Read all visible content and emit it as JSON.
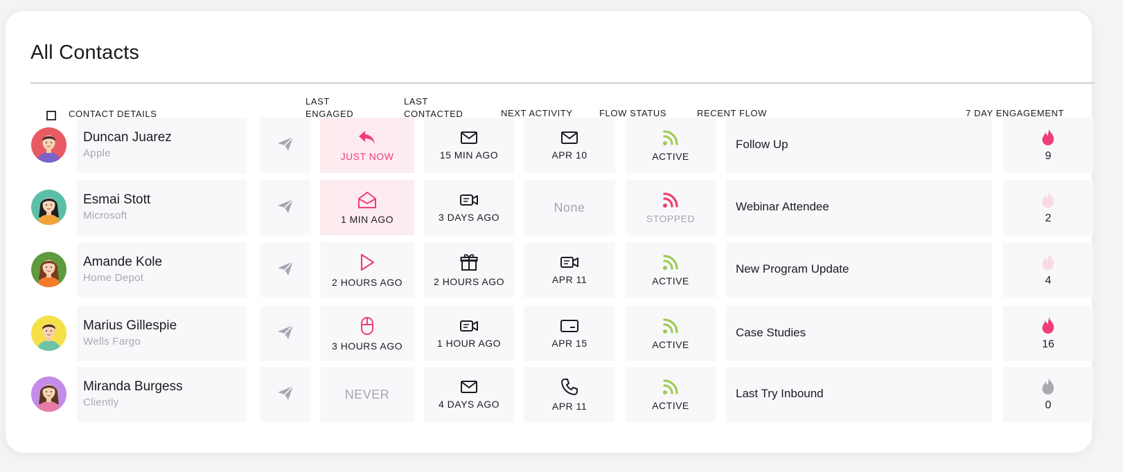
{
  "page": {
    "title": "All Contacts"
  },
  "colors": {
    "accent_pink": "#ee3d78",
    "active_green": "#9dcc52",
    "stopped_red": "#ef3f6a",
    "muted_grey": "#a4a4ad",
    "tile_bg": "#f8f8fb",
    "highlight_bg": "#fdecef"
  },
  "columns": {
    "contact_details": "CONTACT DETAILS",
    "last_engaged": [
      "LAST",
      "ENGAGED"
    ],
    "last_contacted": [
      "LAST",
      "CONTACTED"
    ],
    "next_activity": "NEXT ACTIVITY",
    "flow_status": "FLOW STATUS",
    "recent_flow": "RECENT FLOW",
    "seven_day": "7 DAY ENGAGEMENT"
  },
  "contacts": [
    {
      "name": "Duncan Juarez",
      "company": "Apple",
      "avatar_color": "#e85b62",
      "last_engaged": {
        "icon": "reply-icon",
        "text": "JUST NOW",
        "highlight": true,
        "tone": "pink"
      },
      "last_contacted": {
        "icon": "email-icon",
        "text": "15 MIN AGO"
      },
      "next_activity": {
        "icon": "email-icon",
        "text": "APR 10"
      },
      "flow_status": {
        "text": "ACTIVE",
        "state": "active"
      },
      "recent_flow": "Follow Up",
      "engagement": {
        "count": "9",
        "level": "high"
      }
    },
    {
      "name": "Esmai Stott",
      "company": "Microsoft",
      "avatar_color": "#5bbfa8",
      "last_engaged": {
        "icon": "email-opened-icon",
        "text": "1 MIN AGO",
        "highlight": true,
        "tone": "normal"
      },
      "last_contacted": {
        "icon": "video-icon",
        "text": "3 DAYS AGO"
      },
      "next_activity": {
        "icon": "",
        "text": "None"
      },
      "flow_status": {
        "text": "STOPPED",
        "state": "stopped"
      },
      "recent_flow": "Webinar Attendee",
      "engagement": {
        "count": "2",
        "level": "low"
      }
    },
    {
      "name": "Amande Kole",
      "company": "Home Depot",
      "avatar_color": "#5e9a3e",
      "last_engaged": {
        "icon": "play-icon",
        "text": "2 HOURS AGO",
        "highlight": false,
        "tone": "normal"
      },
      "last_contacted": {
        "icon": "gift-icon",
        "text": "2 HOURS AGO"
      },
      "next_activity": {
        "icon": "video-icon",
        "text": "APR 11"
      },
      "flow_status": {
        "text": "ACTIVE",
        "state": "active"
      },
      "recent_flow": "New Program Update",
      "engagement": {
        "count": "4",
        "level": "low"
      }
    },
    {
      "name": "Marius Gillespie",
      "company": "Wells Fargo",
      "avatar_color": "#f5e04a",
      "last_engaged": {
        "icon": "mouse-click-icon",
        "text": "3 HOURS AGO",
        "highlight": false,
        "tone": "normal"
      },
      "last_contacted": {
        "icon": "video-icon",
        "text": "1 HOUR AGO"
      },
      "next_activity": {
        "icon": "card-icon",
        "text": "APR 15"
      },
      "flow_status": {
        "text": "ACTIVE",
        "state": "active"
      },
      "recent_flow": "Case Studies",
      "engagement": {
        "count": "16",
        "level": "high"
      }
    },
    {
      "name": "Miranda Burgess",
      "company": "Cliently",
      "avatar_color": "#c58be8",
      "last_engaged": {
        "icon": "",
        "text": "NEVER",
        "highlight": false,
        "tone": "never"
      },
      "last_contacted": {
        "icon": "email-icon",
        "text": "4 DAYS AGO"
      },
      "next_activity": {
        "icon": "phone-icon",
        "text": "APR 11"
      },
      "flow_status": {
        "text": "ACTIVE",
        "state": "active"
      },
      "recent_flow": "Last Try Inbound",
      "engagement": {
        "count": "0",
        "level": "none"
      }
    }
  ]
}
